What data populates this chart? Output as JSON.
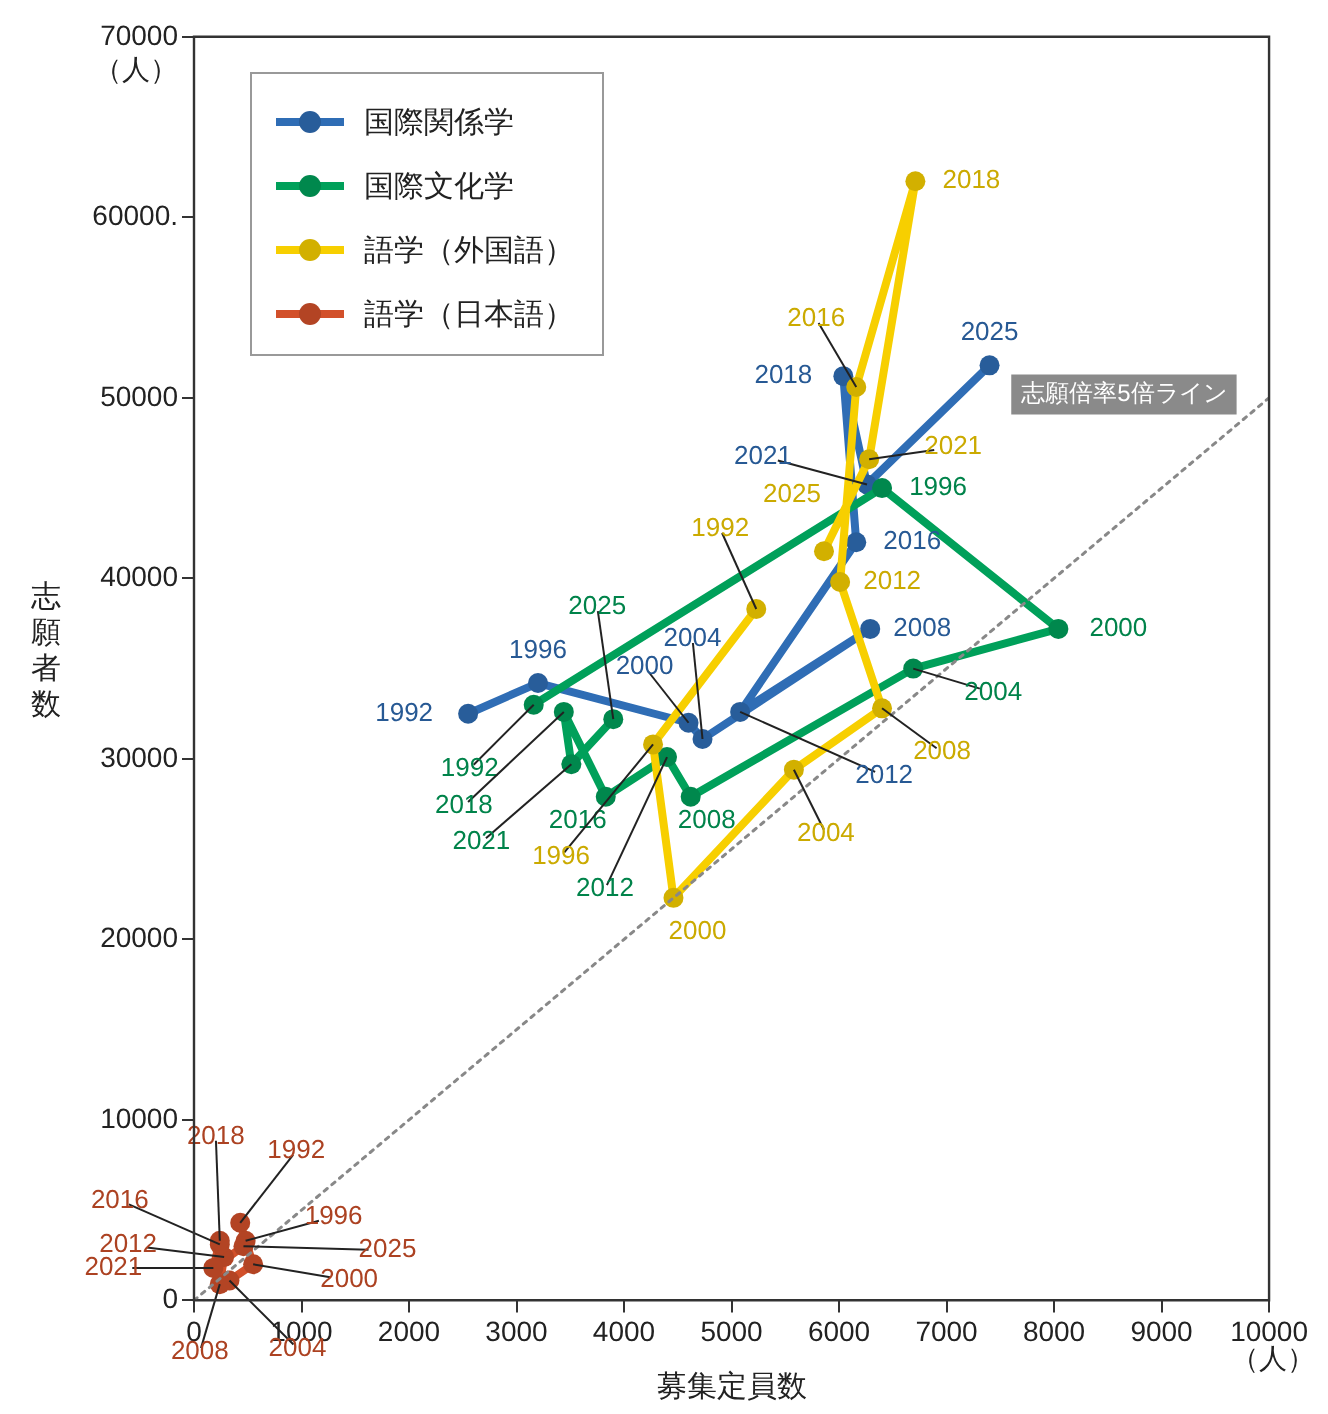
{
  "chart_data": {
    "type": "line",
    "xlabel": "募集定員数",
    "ylabel": "志願者数",
    "xlim": [
      0,
      10000
    ],
    "xticks": [
      0,
      1000,
      2000,
      3000,
      4000,
      5000,
      6000,
      7000,
      8000,
      9000,
      10000
    ],
    "ylim": [
      0,
      70000
    ],
    "yticks": [
      0,
      10000,
      20000,
      30000,
      40000,
      50000,
      {
        "value": 60000,
        "label": "60000."
      },
      70000
    ],
    "grid": false,
    "legend": "top left",
    "marker": "circle",
    "annotations": [
      "（人）",
      "（人）",
      "志願倍率5倍ライン",
      {
        "text": "1992",
        "x": 2550,
        "y": 32500
      },
      {
        "text": "1996",
        "x": 3200,
        "y": 34200
      },
      {
        "text": "2000",
        "x": 4600,
        "y": 32000
      },
      {
        "text": "2004",
        "x": 4730,
        "y": 31100
      },
      {
        "text": "2008",
        "x": 6290,
        "y": 37200
      },
      {
        "text": "2012",
        "x": 5080,
        "y": 32600
      },
      {
        "text": "2016",
        "x": 6160,
        "y": 42000
      },
      {
        "text": "2018",
        "x": 6040,
        "y": 51200
      },
      {
        "text": "2021",
        "x": 6260,
        "y": 45200
      },
      {
        "text": "2025",
        "x": 7400,
        "y": 51800
      },
      {
        "text": "1992",
        "x": 3160,
        "y": 33000
      },
      {
        "text": "1996",
        "x": 6400,
        "y": 45000
      },
      {
        "text": "2000",
        "x": 8040,
        "y": 37200
      },
      {
        "text": "2004",
        "x": 6690,
        "y": 35000
      },
      {
        "text": "2008",
        "x": 4620,
        "y": 27900
      },
      {
        "text": "2012",
        "x": 4400,
        "y": 30100
      },
      {
        "text": "2016",
        "x": 3830,
        "y": 27900
      },
      {
        "text": "2018",
        "x": 3440,
        "y": 32600
      },
      {
        "text": "2021",
        "x": 3510,
        "y": 29700
      },
      {
        "text": "2025",
        "x": 3900,
        "y": 32200
      },
      {
        "text": "1992",
        "x": 5230,
        "y": 38300
      },
      {
        "text": "1996",
        "x": 4270,
        "y": 30800
      },
      {
        "text": "2000",
        "x": 4460,
        "y": 22300
      },
      {
        "text": "2004",
        "x": 5580,
        "y": 29400
      },
      {
        "text": "2008",
        "x": 6400,
        "y": 32800
      },
      {
        "text": "2012",
        "x": 6010,
        "y": 39800
      },
      {
        "text": "2016",
        "x": 6160,
        "y": 50600
      },
      {
        "text": "2018",
        "x": 6710,
        "y": 62000
      },
      {
        "text": "2021",
        "x": 6280,
        "y": 46600
      },
      {
        "text": "2025",
        "x": 5860,
        "y": 41500
      },
      {
        "text": "1992",
        "x": 430,
        "y": 4300
      },
      {
        "text": "1996",
        "x": 480,
        "y": 3300
      },
      {
        "text": "2000",
        "x": 550,
        "y": 2000
      },
      {
        "text": "2004",
        "x": 330,
        "y": 1100
      },
      {
        "text": "2008",
        "x": 240,
        "y": 900
      },
      {
        "text": "2012",
        "x": 280,
        "y": 2400
      },
      {
        "text": "2016",
        "x": 240,
        "y": 3100
      },
      {
        "text": "2018",
        "x": 240,
        "y": 3300
      },
      {
        "text": "2021",
        "x": 180,
        "y": 1800
      },
      {
        "text": "2025",
        "x": 460,
        "y": 3000
      }
    ],
    "series": [
      {
        "name": "国際関係学",
        "color": "#2f6db5",
        "x": [
          2550,
          3200,
          4600,
          4730,
          6290,
          5080,
          6160,
          6040,
          6260,
          7400
        ],
        "values": [
          32500,
          34200,
          32000,
          31100,
          37200,
          32600,
          42000,
          51200,
          45200,
          51800
        ]
      },
      {
        "name": "国際文化学",
        "color": "#00a05a",
        "x": [
          3160,
          6400,
          8040,
          6690,
          4620,
          4400,
          3830,
          3440,
          3510,
          3900
        ],
        "values": [
          33000,
          45000,
          37200,
          35000,
          27900,
          30100,
          27900,
          32600,
          29700,
          32200
        ]
      },
      {
        "name": "語学（外国語）",
        "color": "#f7cf00",
        "x": [
          5230,
          4270,
          4460,
          5580,
          6400,
          6010,
          6160,
          6710,
          6280,
          5860
        ],
        "values": [
          38300,
          30800,
          22300,
          29400,
          32800,
          39800,
          50600,
          62000,
          46600,
          41500
        ]
      },
      {
        "name": "語学（日本語）",
        "color": "#d2502a",
        "x": [
          430,
          480,
          550,
          330,
          240,
          280,
          240,
          240,
          180,
          460
        ],
        "values": [
          4300,
          3300,
          2000,
          1100,
          900,
          2400,
          3100,
          3300,
          1800,
          3000
        ]
      },
      {
        "type": "line",
        "color": "#888888",
        "x": [
          0,
          10000
        ],
        "values": [
          0,
          50000
        ],
        "line_style": "dotted",
        "marker": "none"
      }
    ]
  }
}
